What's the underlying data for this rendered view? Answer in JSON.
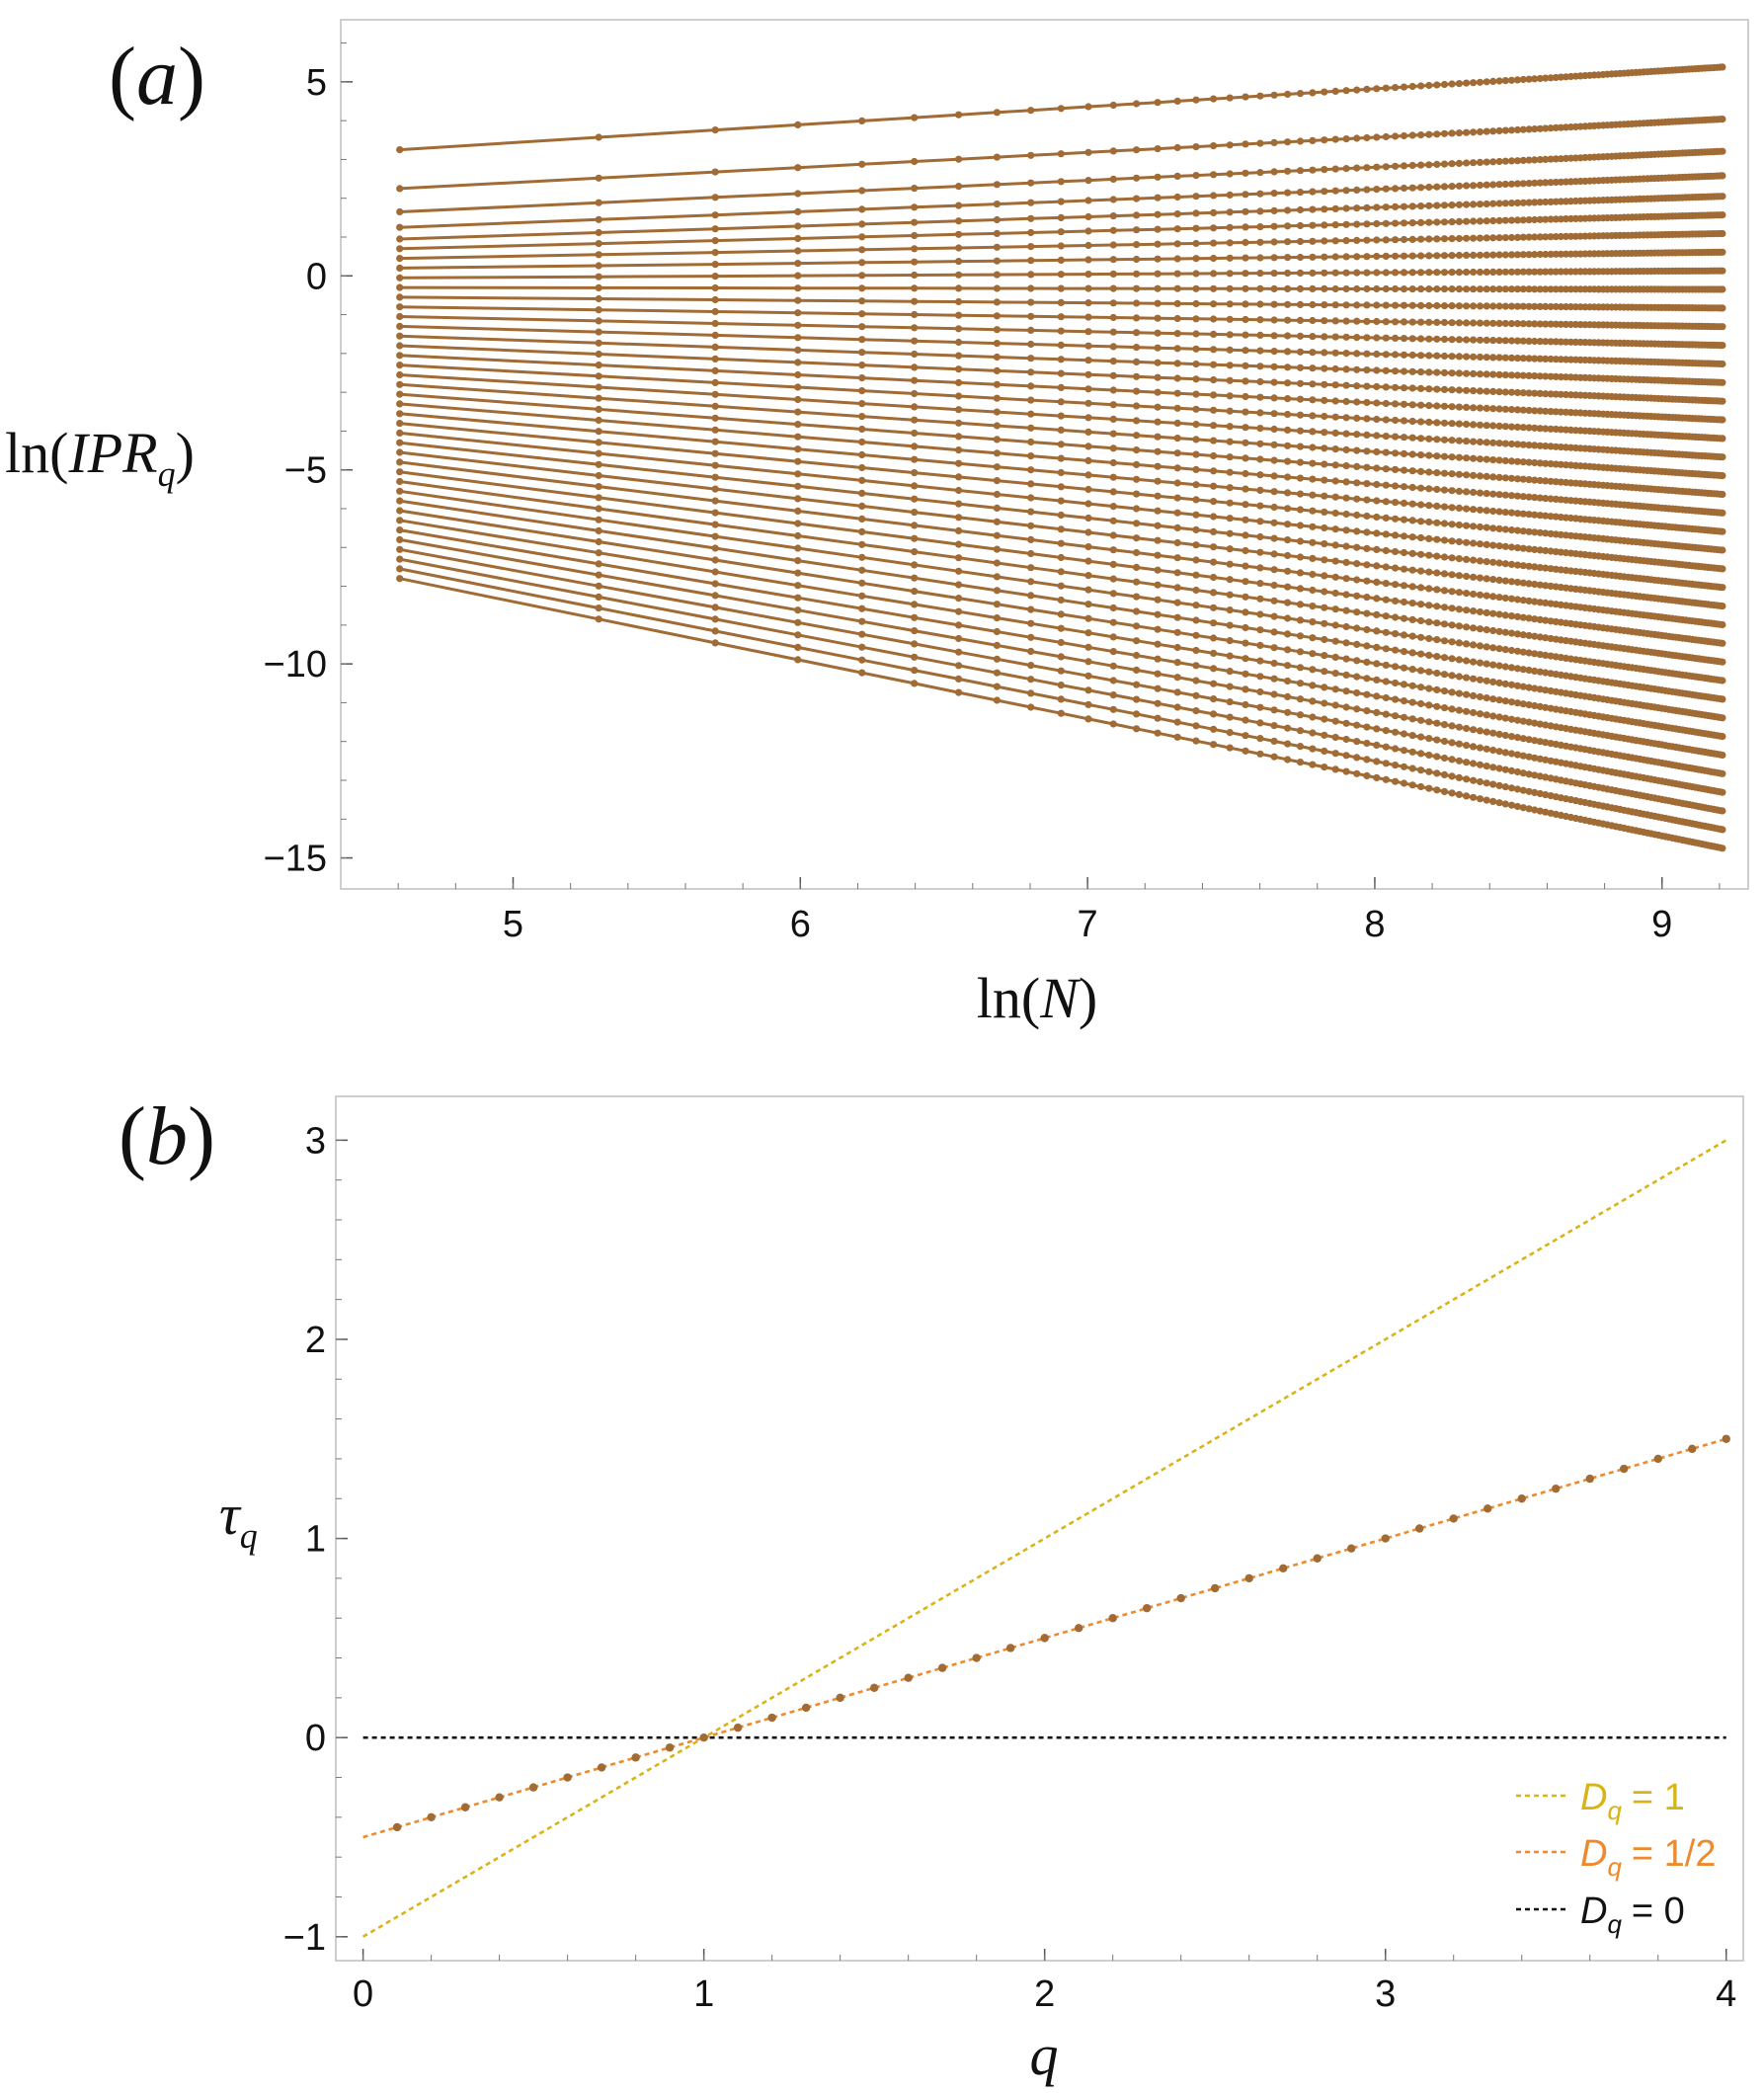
{
  "chart_data": [
    {
      "type": "line",
      "panel_label": "(a)",
      "xlabel": "ln(N)",
      "ylabel": "ln(IPR_q)",
      "xlim": [
        4.4,
        9.3
      ],
      "ylim": [
        -15.8,
        6.6
      ],
      "xticks": [
        5,
        6,
        7,
        8,
        9
      ],
      "yticks": [
        5,
        0,
        -5,
        -10,
        -15
      ],
      "grid": false,
      "series_color": "#a06b35",
      "x": [
        4.6052,
        5.2983,
        5.7038,
        5.9915,
        6.2146,
        6.3969,
        6.5511,
        6.6846,
        6.8024,
        6.9078,
        7.0031,
        7.0901,
        7.1701,
        7.2442,
        7.3132,
        7.3778,
        7.4384,
        7.4955,
        7.5496,
        7.6009,
        7.6497,
        7.6962,
        7.7407,
        7.7832,
        7.824,
        7.8633,
        7.901,
        7.9374,
        7.9725,
        8.0064,
        8.0392,
        8.0709,
        8.1017,
        8.1315,
        8.1605,
        8.1887,
        8.2161,
        8.2428,
        8.2687,
        8.294,
        8.3187,
        8.3428,
        8.3663,
        8.3893,
        8.4118,
        8.4338,
        8.4553,
        8.4764,
        8.497,
        8.5172,
        8.537,
        8.5564,
        8.5755,
        8.5942,
        8.6125,
        8.6305,
        8.6482,
        8.6656,
        8.6827,
        8.6995,
        8.716,
        8.7323,
        8.7483,
        8.764,
        8.7795,
        8.7948,
        8.8098,
        8.8247,
        8.8393,
        8.8537,
        8.8679,
        8.8818,
        8.8957,
        8.9093,
        8.9227,
        8.936,
        8.9491,
        8.962,
        8.9747,
        8.9873,
        8.9998,
        9.0121,
        9.0242,
        9.0362,
        9.0481,
        9.0598,
        9.0715,
        9.0829,
        9.0943,
        9.1055,
        9.1166,
        9.1276,
        9.1385,
        9.1493,
        9.16,
        9.1705,
        9.181,
        9.1914,
        9.2017,
        9.2103
      ],
      "q": [
        4.0,
        3.9,
        3.8,
        3.7,
        3.6,
        3.5,
        3.4,
        3.3,
        3.2,
        3.1,
        3.0,
        2.9,
        2.8,
        2.7,
        2.6,
        2.5,
        2.4,
        2.3,
        2.2,
        2.1,
        2.0,
        1.9,
        1.8,
        1.7,
        1.6,
        1.5,
        1.4,
        1.3,
        1.2,
        1.1,
        1.0,
        0.9,
        0.8,
        0.7,
        0.6,
        0.5,
        0.4,
        0.3,
        0.2,
        0.1
      ],
      "series_rule": "ln(IPR_q) = -tau_q * ln(N) + c_q, tau_q = (q - 1)/2",
      "y_at_first_x": [
        -7.8,
        -7.55,
        -7.3,
        -7.05,
        -6.8,
        -6.55,
        -6.3,
        -6.05,
        -5.8,
        -5.55,
        -5.3,
        -5.05,
        -4.8,
        -4.55,
        -4.3,
        -4.05,
        -3.8,
        -3.55,
        -3.3,
        -3.05,
        -2.8,
        -2.55,
        -2.3,
        -2.05,
        -1.8,
        -1.55,
        -1.3,
        -1.05,
        -0.8,
        -0.55,
        -0.3,
        -0.05,
        0.2,
        0.45,
        0.7,
        0.95,
        1.25,
        1.65,
        2.25,
        3.25
      ],
      "y_at_last_x": [
        -14.75,
        -14.27,
        -13.79,
        -13.31,
        -12.83,
        -12.35,
        -11.87,
        -11.39,
        -10.91,
        -10.43,
        -9.95,
        -9.47,
        -8.99,
        -8.51,
        -8.03,
        -7.55,
        -7.07,
        -6.59,
        -6.11,
        -5.63,
        -5.15,
        -4.67,
        -4.19,
        -3.71,
        -3.23,
        -2.75,
        -2.27,
        -1.79,
        -1.31,
        -0.83,
        -0.35,
        0.13,
        0.61,
        1.09,
        1.57,
        2.05,
        2.58,
        3.21,
        4.04,
        5.38
      ]
    },
    {
      "type": "scatter",
      "panel_label": "(b)",
      "xlabel": "q",
      "ylabel": "τ_q",
      "xlim": [
        -0.08,
        4.05
      ],
      "ylim": [
        -1.12,
        3.22
      ],
      "xticks": [
        0,
        1,
        2,
        3,
        4
      ],
      "yticks": [
        3,
        2,
        1,
        0,
        -1
      ],
      "grid": false,
      "points": {
        "color": "#a06b35",
        "x": [
          0.1,
          0.2,
          0.3,
          0.4,
          0.5,
          0.6,
          0.7,
          0.8,
          0.9,
          1.0,
          1.1,
          1.2,
          1.3,
          1.4,
          1.5,
          1.6,
          1.7,
          1.8,
          1.9,
          2.0,
          2.1,
          2.2,
          2.3,
          2.4,
          2.5,
          2.6,
          2.7,
          2.8,
          2.9,
          3.0,
          3.1,
          3.2,
          3.3,
          3.4,
          3.5,
          3.6,
          3.7,
          3.8,
          3.9,
          4.0
        ],
        "y": [
          -0.45,
          -0.4,
          -0.35,
          -0.3,
          -0.25,
          -0.2,
          -0.15,
          -0.1,
          -0.05,
          0.0,
          0.05,
          0.1,
          0.15,
          0.2,
          0.25,
          0.3,
          0.35,
          0.4,
          0.45,
          0.5,
          0.55,
          0.6,
          0.65,
          0.7,
          0.75,
          0.8,
          0.85,
          0.9,
          0.95,
          1.0,
          1.05,
          1.1,
          1.15,
          1.2,
          1.25,
          1.3,
          1.35,
          1.4,
          1.45,
          1.5
        ]
      },
      "series": [
        {
          "name_symbol": "D",
          "name_sub": "q",
          "name_value": "= 1",
          "color": "#d8b416",
          "x": [
            0,
            4
          ],
          "y": [
            -1,
            3
          ]
        },
        {
          "name_symbol": "D",
          "name_sub": "q",
          "name_value": "= 1/2",
          "color": "#ee8a2e",
          "x": [
            0,
            4
          ],
          "y": [
            -0.5,
            1.5
          ]
        },
        {
          "name_symbol": "D",
          "name_sub": "q",
          "name_value": "= 0",
          "color": "#111111",
          "x": [
            0,
            4
          ],
          "y": [
            0,
            0
          ]
        }
      ],
      "legend_position": "bottom-right"
    }
  ]
}
